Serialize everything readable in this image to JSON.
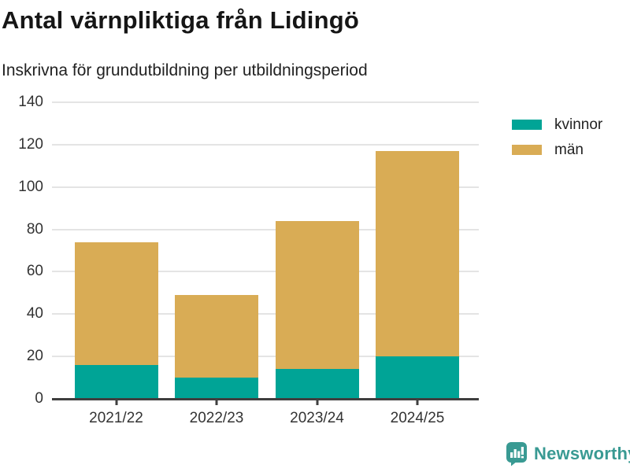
{
  "header": {
    "title": "Antal värnpliktiga från Lidingö",
    "subtitle": "Inskrivna för grundutbildning per utbildningsperiod"
  },
  "chart_data": {
    "type": "bar",
    "stacked": true,
    "categories": [
      "2021/22",
      "2022/23",
      "2023/24",
      "2024/25"
    ],
    "series": [
      {
        "name": "kvinnor",
        "color": "#00a496",
        "values": [
          16,
          10,
          14,
          20
        ]
      },
      {
        "name": "män",
        "color": "#d9ac55",
        "values": [
          58,
          39,
          70,
          97
        ]
      }
    ],
    "totals": [
      74,
      49,
      84,
      117
    ],
    "ylim": [
      0,
      140
    ],
    "ytick_step": 20,
    "grid": true,
    "legend_position": "right",
    "colors": {
      "gridline": "#e4e4e4",
      "axis": "#3f3f3f",
      "tick_text": "#333333"
    }
  },
  "footer": {
    "brand": "Newsworthy",
    "brand_color": "#399a93",
    "logo_icon": "bar-chart-speech-bubble-icon"
  }
}
